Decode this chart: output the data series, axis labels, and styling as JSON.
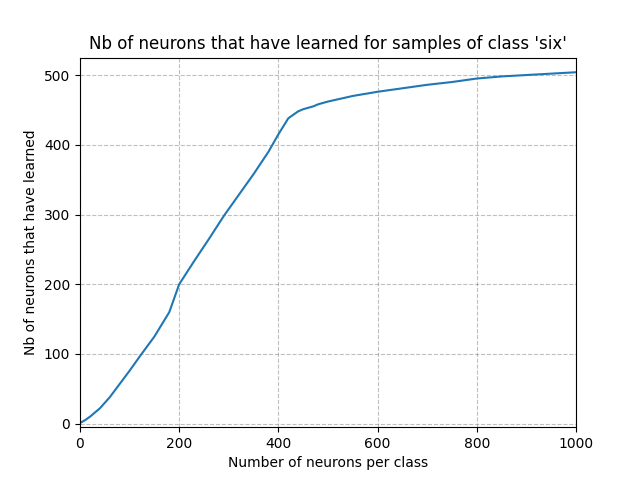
{
  "title": "Nb of neurons that have learned for samples of class 'six'",
  "xlabel": "Number of neurons per class",
  "ylabel": "Nb of neurons that have learned",
  "line_color": "#1f77b4",
  "background_color": "#ffffff",
  "xlim": [
    0,
    1000
  ],
  "ylim": [
    -5,
    525
  ],
  "x_ticks": [
    0,
    200,
    400,
    600,
    800,
    1000
  ],
  "y_ticks": [
    0,
    100,
    200,
    300,
    400,
    500
  ],
  "x_data": [
    0,
    10,
    20,
    40,
    60,
    80,
    100,
    120,
    150,
    180,
    200,
    230,
    260,
    290,
    320,
    350,
    380,
    400,
    420,
    440,
    450,
    460,
    470,
    480,
    500,
    550,
    600,
    650,
    700,
    750,
    800,
    850,
    900,
    950,
    1000
  ],
  "y_data": [
    1,
    5,
    10,
    22,
    38,
    57,
    76,
    96,
    125,
    160,
    200,
    233,
    265,
    298,
    328,
    358,
    390,
    415,
    438,
    448,
    451,
    453,
    455,
    458,
    462,
    470,
    476,
    481,
    486,
    490,
    495,
    498,
    500,
    502,
    504
  ],
  "title_fontsize": 12,
  "label_fontsize": 10
}
